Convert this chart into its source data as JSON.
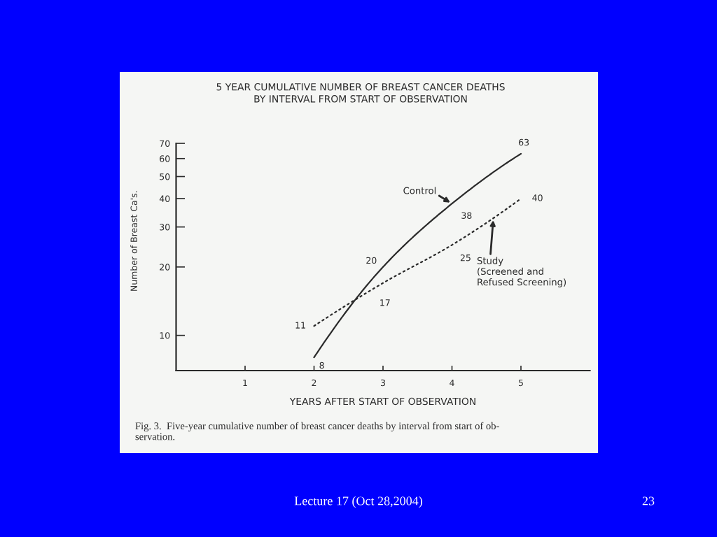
{
  "chart_data": {
    "type": "line",
    "title": "5 YEAR CUMULATIVE NUMBER OF BREAST CANCER DEATHS\nBY INTERVAL FROM START OF OBSERVATION",
    "xlabel": "YEARS AFTER START OF OBSERVATION",
    "ylabel": "Number of Breast Ca's.",
    "x": [
      2,
      3,
      4,
      5
    ],
    "series": [
      {
        "name": "Control",
        "color": "#2b2b2b",
        "values": [
          8,
          20,
          38,
          63
        ],
        "line_style": "solid"
      },
      {
        "name": "Study\n(Screened and\nRefused Screening)",
        "color": "#2b2b2b",
        "values": [
          11,
          17,
          25,
          40
        ],
        "line_style": "dotted"
      }
    ],
    "xlim": [
      0,
      6
    ],
    "xticks": [
      1,
      2,
      3,
      4,
      5
    ],
    "ylim": [
      7,
      70
    ],
    "yticks": [
      10,
      20,
      30,
      40,
      50,
      60,
      70
    ],
    "log": "y",
    "data_labels": true,
    "annotations": [
      "Fig. 3.  Five-year cumulative number of breast cancer deaths by interval from start of ob-\nservation.",
      "Lecture 17 (Oct 28,2004)",
      "23"
    ]
  }
}
